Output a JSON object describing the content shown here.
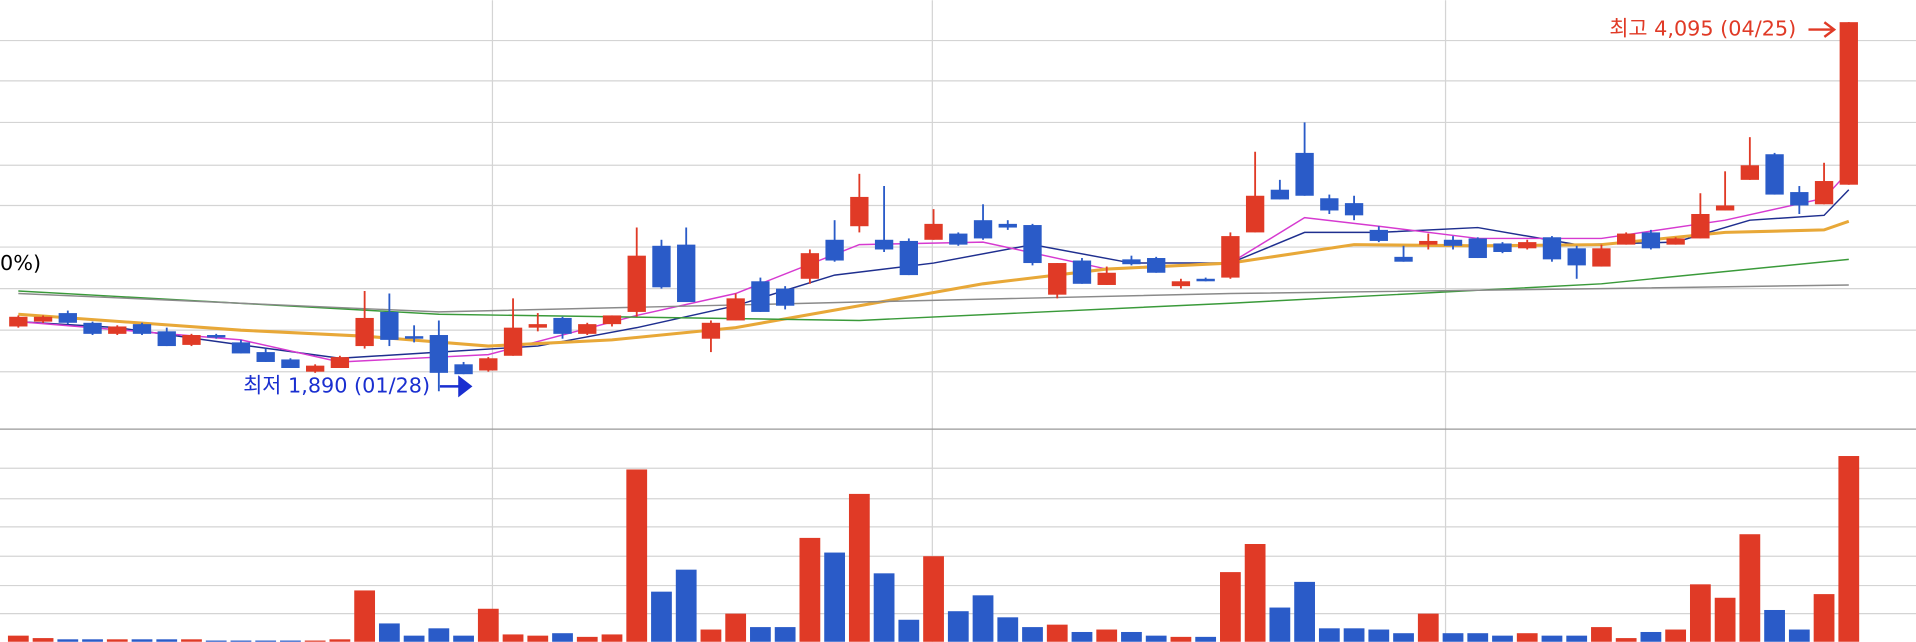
{
  "chart_data": {
    "type": "candlestick",
    "high_label": "최고 4,095 (04/25)",
    "low_label": "최저 1,890 (01/28)",
    "left_label": "0%)",
    "up_color": "#e03a26",
    "down_color": "#2a5bc8",
    "ylim": [
      1671,
      4226
    ],
    "open": [
      2277,
      2306,
      2357,
      2299,
      2233,
      2291,
      2248,
      2167,
      2226,
      2182,
      2124,
      2080,
      2007,
      2029,
      2160,
      2364,
      2219,
      2226,
      2051,
      2014,
      2102,
      2270,
      2328,
      2233,
      2291,
      2364,
      2759,
      2766,
      2204,
      2313,
      2547,
      2503,
      2562,
      2795,
      2876,
      2795,
      2788,
      2795,
      2832,
      2912,
      2890,
      2883,
      2467,
      2671,
      2525,
      2678,
      2686,
      2518,
      2562,
      2569,
      2839,
      3094,
      3314,
      3043,
      3014,
      2854,
      2693,
      2766,
      2795,
      2803,
      2773,
      2744,
      2810,
      2744,
      2635,
      2766,
      2839,
      2766,
      2803,
      2970,
      3153,
      3306,
      3080,
      3007,
      3124
    ],
    "high": [
      2343,
      2343,
      2372,
      2306,
      2284,
      2299,
      2270,
      2233,
      2233,
      2197,
      2145,
      2087,
      2051,
      2102,
      2489,
      2474,
      2284,
      2313,
      2065,
      2094,
      2445,
      2357,
      2335,
      2299,
      2343,
      2868,
      2795,
      2868,
      2313,
      2474,
      2569,
      2518,
      2737,
      2912,
      3189,
      3116,
      2803,
      2978,
      2839,
      3007,
      2912,
      2890,
      2656,
      2686,
      2635,
      2700,
      2693,
      2562,
      2569,
      2839,
      3321,
      3153,
      3496,
      3065,
      3058,
      2876,
      2759,
      2832,
      2817,
      2810,
      2781,
      2795,
      2817,
      2759,
      2766,
      2839,
      2854,
      2810,
      3073,
      3204,
      3408,
      3314,
      3116,
      3255,
      4095
    ],
    "low": [
      2270,
      2299,
      2291,
      2226,
      2226,
      2226,
      2160,
      2160,
      2204,
      2116,
      2065,
      2029,
      2000,
      2029,
      2145,
      2160,
      2182,
      1890,
      1992,
      2007,
      2102,
      2248,
      2204,
      2226,
      2277,
      2335,
      2503,
      2423,
      2124,
      2313,
      2364,
      2379,
      2532,
      2664,
      2839,
      2722,
      2584,
      2795,
      2759,
      2795,
      2854,
      2642,
      2445,
      2532,
      2525,
      2642,
      2598,
      2503,
      2547,
      2562,
      2839,
      3036,
      3058,
      2949,
      2912,
      2781,
      2664,
      2737,
      2737,
      2686,
      2715,
      2737,
      2664,
      2562,
      2635,
      2766,
      2737,
      2766,
      2803,
      2970,
      3153,
      3065,
      2949,
      3007,
      3124
    ],
    "close": [
      2335,
      2335,
      2299,
      2233,
      2277,
      2233,
      2160,
      2226,
      2211,
      2116,
      2065,
      2029,
      2043,
      2094,
      2328,
      2197,
      2204,
      2000,
      1992,
      2087,
      2270,
      2291,
      2233,
      2291,
      2343,
      2700,
      2511,
      2423,
      2299,
      2445,
      2364,
      2401,
      2715,
      2671,
      3051,
      2737,
      2584,
      2890,
      2766,
      2803,
      2868,
      2656,
      2656,
      2532,
      2598,
      2649,
      2598,
      2547,
      2547,
      2817,
      3058,
      3036,
      3058,
      2970,
      2941,
      2788,
      2664,
      2788,
      2759,
      2686,
      2722,
      2781,
      2678,
      2642,
      2744,
      2832,
      2744,
      2803,
      2949,
      3000,
      3240,
      3065,
      3000,
      3146,
      4095
    ],
    "volume": {
      "ylim": [
        0,
        173
      ],
      "values": [
        5,
        3,
        2,
        2,
        2,
        2,
        2,
        2,
        1,
        1,
        1,
        1,
        1,
        2,
        42,
        15,
        5,
        11,
        5,
        27,
        6,
        5,
        7,
        4,
        6,
        141,
        41,
        59,
        10,
        23,
        12,
        12,
        85,
        73,
        121,
        56,
        18,
        70,
        25,
        38,
        20,
        12,
        14,
        8,
        10,
        8,
        5,
        4,
        4,
        57,
        80,
        28,
        49,
        11,
        11,
        10,
        7,
        23,
        7,
        7,
        5,
        7,
        5,
        5,
        12,
        3,
        8,
        10,
        47,
        36,
        88,
        26,
        10,
        39,
        152
      ]
    },
    "ma": [
      {
        "color": "#1f2f8f",
        "x": [
          0,
          4,
          9,
          13,
          17,
          21,
          25,
          29,
          33,
          37,
          41,
          45,
          49,
          52,
          55,
          59,
          63,
          67,
          70,
          73,
          74
        ],
        "values": [
          2306,
          2270,
          2167,
          2087,
          2124,
          2160,
          2270,
          2401,
          2584,
          2656,
          2766,
          2656,
          2656,
          2839,
          2839,
          2868,
          2766,
          2781,
          2912,
          2941,
          3094
        ]
      },
      {
        "color": "#d63ad0",
        "x": [
          0,
          9,
          13,
          19,
          25,
          29,
          34,
          39,
          44,
          49,
          52,
          55,
          59,
          64,
          69,
          73,
          74
        ],
        "values": [
          2306,
          2197,
          2065,
          2109,
          2343,
          2474,
          2766,
          2781,
          2620,
          2656,
          2927,
          2876,
          2803,
          2803,
          2912,
          3043,
          3204
        ]
      },
      {
        "color": "#e8a838",
        "x": [
          0,
          9,
          14,
          19,
          24,
          29,
          34,
          39,
          44,
          49,
          54,
          59,
          64,
          69,
          73,
          74
        ],
        "values": [
          2350,
          2255,
          2219,
          2160,
          2197,
          2270,
          2401,
          2532,
          2620,
          2656,
          2766,
          2759,
          2766,
          2839,
          2854,
          2905
        ]
      },
      {
        "color": "#3a9a3a",
        "x": [
          0,
          17,
          34,
          49,
          64,
          74
        ],
        "values": [
          2489,
          2350,
          2313,
          2416,
          2532,
          2678
        ]
      },
      {
        "color": "#8a8a8a",
        "x": [
          0,
          17,
          34,
          49,
          64,
          74
        ],
        "values": [
          2474,
          2364,
          2423,
          2474,
          2503,
          2525
        ]
      }
    ]
  }
}
